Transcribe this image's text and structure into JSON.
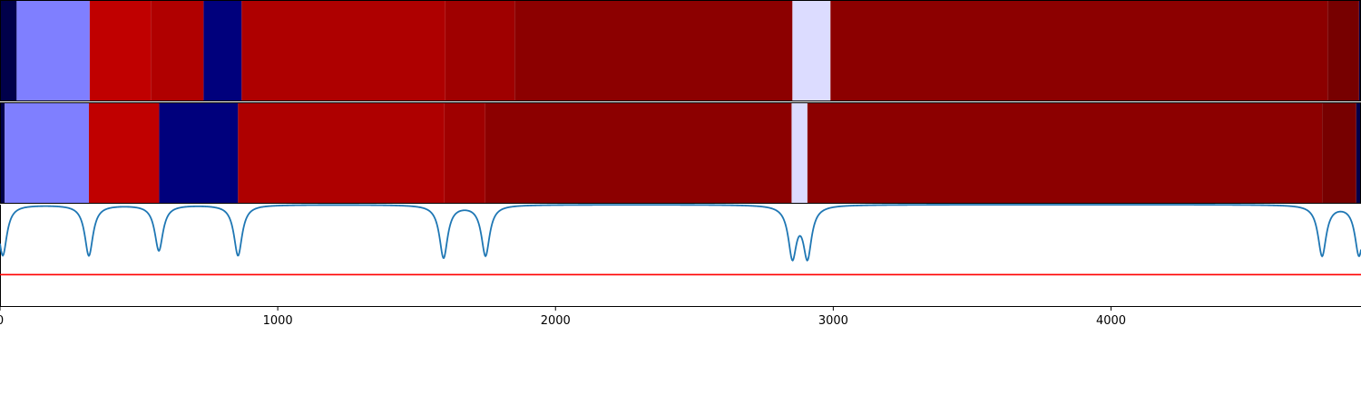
{
  "chart_data": {
    "type": "heatmap",
    "x_range": [
      0,
      4900
    ],
    "x_ticks": [
      0,
      1000,
      2000,
      3000,
      4000
    ],
    "x_tick_labels": [
      "0",
      "1000",
      "2000",
      "3000",
      "4000"
    ],
    "rows": [
      {
        "segments": [
          {
            "start": 0,
            "end": 60,
            "color": "#00004a"
          },
          {
            "start": 60,
            "end": 323,
            "color": "#7f7fff"
          },
          {
            "start": 323,
            "end": 543,
            "color": "#c00000"
          },
          {
            "start": 543,
            "end": 733,
            "color": "#b00000"
          },
          {
            "start": 733,
            "end": 870,
            "color": "#00007c"
          },
          {
            "start": 870,
            "end": 1603,
            "color": "#ae0000"
          },
          {
            "start": 1603,
            "end": 1853,
            "color": "#9f0000"
          },
          {
            "start": 1853,
            "end": 2853,
            "color": "#8c0000"
          },
          {
            "start": 2853,
            "end": 2990,
            "color": "#dcdcff"
          },
          {
            "start": 2990,
            "end": 4780,
            "color": "#8c0000"
          },
          {
            "start": 4780,
            "end": 4893,
            "color": "#770000"
          },
          {
            "start": 4893,
            "end": 4900,
            "color": "#00004a"
          }
        ]
      },
      {
        "segments": [
          {
            "start": 0,
            "end": 17,
            "color": "#00004a"
          },
          {
            "start": 17,
            "end": 320,
            "color": "#7f7fff"
          },
          {
            "start": 320,
            "end": 573,
            "color": "#c00000"
          },
          {
            "start": 573,
            "end": 857,
            "color": "#00007c"
          },
          {
            "start": 857,
            "end": 1600,
            "color": "#ae0000"
          },
          {
            "start": 1600,
            "end": 1747,
            "color": "#9f0000"
          },
          {
            "start": 1747,
            "end": 2850,
            "color": "#8c0000"
          },
          {
            "start": 2850,
            "end": 2907,
            "color": "#dcdcff"
          },
          {
            "start": 2907,
            "end": 4760,
            "color": "#8c0000"
          },
          {
            "start": 4760,
            "end": 4883,
            "color": "#770000"
          },
          {
            "start": 4883,
            "end": 4900,
            "color": "#00004a"
          }
        ]
      }
    ],
    "signal_line": {
      "color": "#1f77b4",
      "baseline": 1.0,
      "dips": [
        {
          "x": 10,
          "depth": 0.5
        },
        {
          "x": 320,
          "depth": 0.5
        },
        {
          "x": 572,
          "depth": 0.45
        },
        {
          "x": 857,
          "depth": 0.5
        },
        {
          "x": 1597,
          "depth": 0.52
        },
        {
          "x": 1748,
          "depth": 0.5
        },
        {
          "x": 2853,
          "depth": 0.5
        },
        {
          "x": 2907,
          "depth": 0.5
        },
        {
          "x": 4760,
          "depth": 0.5
        },
        {
          "x": 4893,
          "depth": 0.5
        }
      ]
    },
    "threshold_line": {
      "value": 0.31,
      "color": "#ff0000"
    },
    "signal_ylim": [
      0.0,
      1.0
    ],
    "grid": false
  }
}
